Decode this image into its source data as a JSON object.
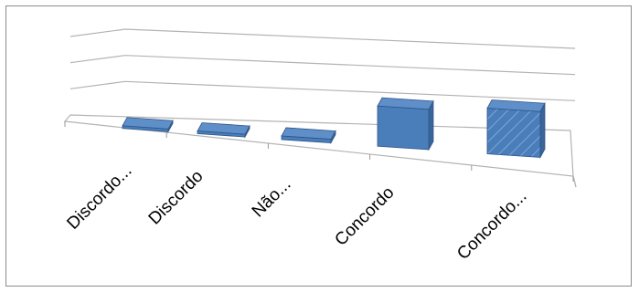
{
  "chart_data": {
    "type": "bar",
    "style": "3d-column",
    "title": "",
    "xlabel": "",
    "ylabel": "",
    "categories": [
      "Discordo...",
      "Discordo",
      "Não...",
      "Concordo",
      "Concordo..."
    ],
    "values": [
      1,
      1,
      2,
      22,
      25
    ],
    "ylim": [
      0,
      45
    ],
    "y_gridlines": [
      0,
      15,
      30,
      45
    ],
    "y_tick_labels_visible": false,
    "legend": "none",
    "grid": true,
    "colors": {
      "bar_front": "#4a7ebb",
      "bar_side": "#3a6599",
      "bar_top": "#5f8fc8",
      "bar_edge": "#2f5488",
      "gridline": "#b3b3b3",
      "frame": "#8c8c8c"
    },
    "patterned_series_index": 4
  }
}
